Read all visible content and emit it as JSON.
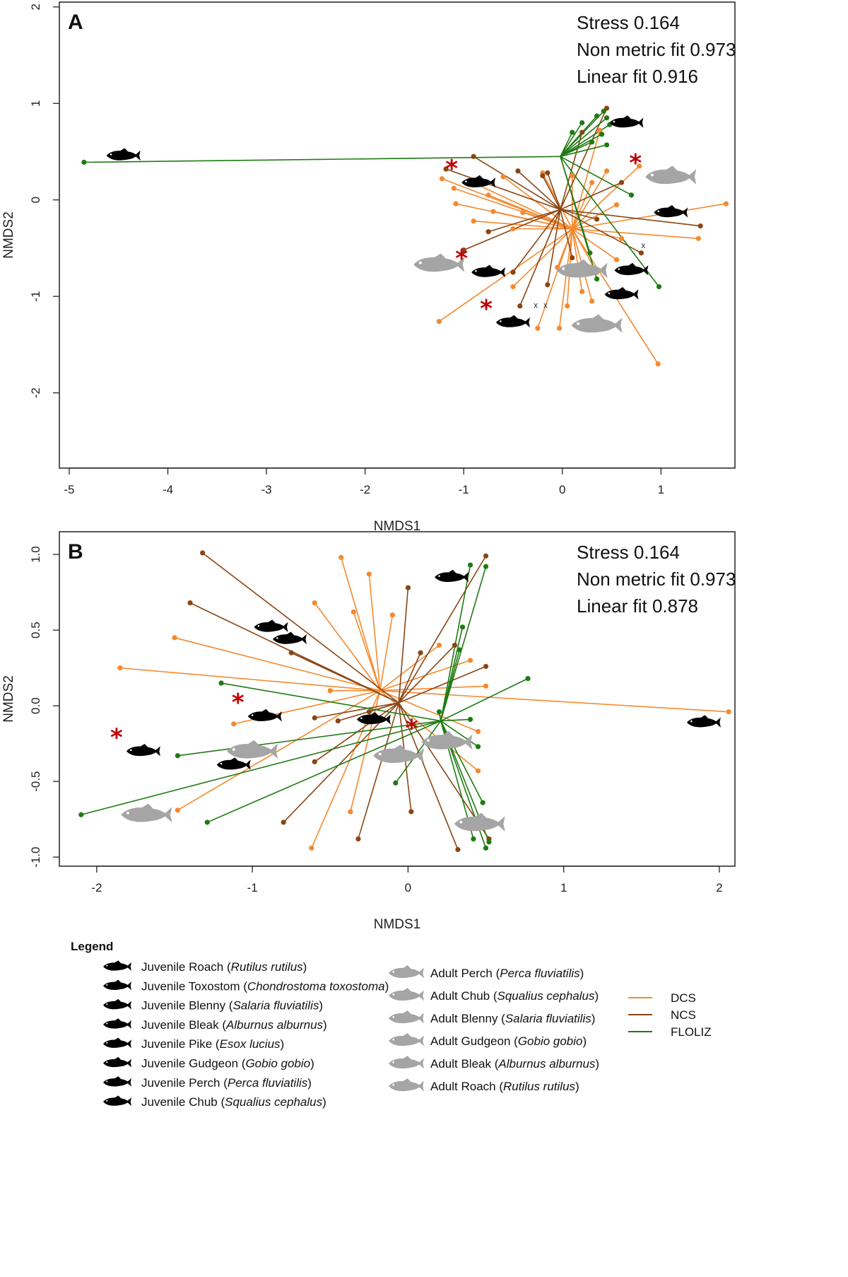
{
  "chart_data": [
    {
      "type": "scatter",
      "panel": "A",
      "xlabel": "NMDS1",
      "ylabel": "NMDS2",
      "xlim": [
        -5.1,
        1.75
      ],
      "ylim": [
        -2.78,
        2.05
      ],
      "xticks": [
        -5,
        -4,
        -3,
        -2,
        -1,
        0,
        1
      ],
      "yticks": [
        -2,
        -1,
        0,
        1,
        2
      ],
      "stats": [
        "Stress 0.164",
        "Non metric fit 0.973",
        "Linear fit 0.916"
      ],
      "centroids": {
        "DCS": [
          0.1,
          -0.3
        ],
        "NCS": [
          -0.02,
          -0.1
        ],
        "FLOLIZ": [
          -0.02,
          0.45
        ]
      },
      "series": [
        {
          "name": "DCS",
          "points": [
            [
              -1.22,
              0.22
            ],
            [
              -1.1,
              0.12
            ],
            [
              -1.08,
              -0.04
            ],
            [
              -0.95,
              0.2
            ],
            [
              -0.9,
              -0.22
            ],
            [
              -0.75,
              0.05
            ],
            [
              -0.7,
              -0.12
            ],
            [
              -0.6,
              0.24
            ],
            [
              -0.5,
              -0.3
            ],
            [
              -0.4,
              -0.13
            ],
            [
              -0.2,
              0.28
            ],
            [
              0.1,
              0.25
            ],
            [
              0.3,
              0.18
            ],
            [
              0.45,
              0.3
            ],
            [
              0.55,
              -0.05
            ],
            [
              1.66,
              -0.04
            ],
            [
              1.38,
              -0.4
            ],
            [
              0.78,
              0.35
            ],
            [
              0.6,
              -0.4
            ],
            [
              0.55,
              -0.62
            ],
            [
              0.35,
              -0.75
            ],
            [
              0.2,
              -0.95
            ],
            [
              0.3,
              -1.05
            ],
            [
              0.05,
              -1.1
            ],
            [
              -0.03,
              -1.33
            ],
            [
              -0.25,
              -1.33
            ],
            [
              -0.5,
              -0.9
            ],
            [
              -1.25,
              -1.26
            ],
            [
              0.38,
              0.72
            ],
            [
              0.97,
              -1.7
            ],
            [
              -0.05,
              -0.7
            ]
          ]
        },
        {
          "name": "NCS",
          "points": [
            [
              -1.18,
              0.32
            ],
            [
              -0.9,
              0.45
            ],
            [
              -0.45,
              0.3
            ],
            [
              -0.2,
              0.25
            ],
            [
              -0.15,
              0.28
            ],
            [
              -1.0,
              -0.52
            ],
            [
              -0.75,
              -0.33
            ],
            [
              -0.5,
              -0.75
            ],
            [
              -0.43,
              -1.1
            ],
            [
              -0.15,
              -0.88
            ],
            [
              0.1,
              -0.6
            ],
            [
              0.35,
              -0.2
            ],
            [
              0.8,
              -0.55
            ],
            [
              1.4,
              -0.27
            ],
            [
              0.45,
              0.95
            ],
            [
              0.6,
              0.18
            ],
            [
              0.2,
              0.7
            ]
          ]
        },
        {
          "name": "FLOLIZ",
          "points": [
            [
              -4.85,
              0.39
            ],
            [
              0.1,
              0.7
            ],
            [
              0.2,
              0.8
            ],
            [
              0.3,
              0.6
            ],
            [
              0.42,
              0.92
            ],
            [
              0.45,
              0.85
            ],
            [
              0.4,
              0.68
            ],
            [
              0.45,
              0.57
            ],
            [
              0.48,
              0.78
            ],
            [
              0.35,
              0.87
            ],
            [
              0.7,
              0.05
            ],
            [
              0.98,
              -0.9
            ],
            [
              0.35,
              -0.82
            ],
            [
              0.28,
              -0.55
            ]
          ]
        }
      ],
      "annotations": [
        {
          "text": "Juvenile Pike (Esox lucius)",
          "pos": [
            -4.45,
            0.46
          ]
        },
        {
          "text": "Juvenile Blenny (Salaria fluviatilis)",
          "pos": [
            0.65,
            0.8
          ]
        },
        {
          "text": "Adult Blenny (Salaria fluviatilis)",
          "pos": [
            1.1,
            0.24
          ],
          "star": true
        },
        {
          "text": "Juvenile Perch (Perca fluviatilis)",
          "pos": [
            -0.85,
            0.18
          ],
          "star": true
        },
        {
          "text": "Juvenile Bleak (Alburnus alburnus)",
          "pos": [
            1.1,
            -0.13
          ]
        },
        {
          "text": "Adult Gudgeon (Gobio gobio)",
          "pos": [
            -1.25,
            -0.67
          ]
        },
        {
          "text": "Juvenile Gudgeon (Gobio gobio)",
          "pos": [
            -0.75,
            -0.75
          ],
          "star": true
        },
        {
          "text": "Adult Perch (Perca fluviatilis)",
          "pos": [
            0.2,
            -0.73
          ]
        },
        {
          "text": "Juvenile Roach (Rutilus rutilus)",
          "pos": [
            0.7,
            -0.73
          ]
        },
        {
          "text": "Juvenile Chub (Squalius cephalus)",
          "pos": [
            0.6,
            -0.98
          ]
        },
        {
          "text": "Juvenile Toxostom (Chondrostoma toxostoma)",
          "pos": [
            -0.5,
            -1.27
          ],
          "star": true
        },
        {
          "text": "Adult Chub (Squalius cephalus)",
          "pos": [
            0.35,
            -1.3
          ]
        }
      ],
      "markers": [
        {
          "text": "x",
          "pos": [
            -0.27,
            -1.09
          ]
        },
        {
          "text": "x",
          "pos": [
            -0.17,
            -1.09
          ]
        },
        {
          "text": "x",
          "pos": [
            0.82,
            -0.47
          ]
        }
      ]
    },
    {
      "type": "scatter",
      "panel": "B",
      "xlabel": "NMDS1",
      "ylabel": "NMDS2",
      "xlim": [
        -2.24,
        2.1
      ],
      "ylim": [
        -1.06,
        1.15
      ],
      "xticks": [
        -2,
        -1,
        0,
        1,
        2
      ],
      "yticks": [
        1.0,
        0.5,
        0.0,
        -0.5,
        -1.0
      ],
      "stats": [
        "Stress 0.164",
        "Non metric fit 0.973",
        "Linear fit 0.878"
      ],
      "centroids": {
        "DCS": [
          -0.18,
          0.1
        ],
        "NCS": [
          -0.06,
          0.02
        ],
        "FLOLIZ": [
          0.21,
          -0.1
        ]
      },
      "series": [
        {
          "name": "DCS",
          "points": [
            [
              -1.85,
              0.25
            ],
            [
              -1.5,
              0.45
            ],
            [
              -0.43,
              0.98
            ],
            [
              -0.6,
              0.68
            ],
            [
              -0.25,
              0.87
            ],
            [
              -0.1,
              0.6
            ],
            [
              -0.35,
              0.62
            ],
            [
              -0.5,
              0.1
            ],
            [
              -1.12,
              -0.12
            ],
            [
              -1.48,
              -0.69
            ],
            [
              -0.62,
              -0.94
            ],
            [
              -0.37,
              -0.7
            ],
            [
              0.4,
              0.3
            ],
            [
              0.45,
              -0.17
            ],
            [
              0.45,
              -0.43
            ],
            [
              0.2,
              0.4
            ],
            [
              0.5,
              0.13
            ],
            [
              2.06,
              -0.04
            ]
          ]
        },
        {
          "name": "NCS",
          "points": [
            [
              -1.32,
              1.01
            ],
            [
              -1.4,
              0.68
            ],
            [
              -0.75,
              0.35
            ],
            [
              -0.6,
              -0.08
            ],
            [
              -0.45,
              -0.1
            ],
            [
              -0.25,
              -0.04
            ],
            [
              -0.6,
              -0.37
            ],
            [
              -0.8,
              -0.77
            ],
            [
              -0.32,
              -0.88
            ],
            [
              0.0,
              0.78
            ],
            [
              0.02,
              -0.7
            ],
            [
              0.32,
              -0.95
            ],
            [
              0.52,
              -0.88
            ],
            [
              0.5,
              0.26
            ],
            [
              0.5,
              0.99
            ],
            [
              0.3,
              0.4
            ],
            [
              0.08,
              0.35
            ]
          ]
        },
        {
          "name": "FLOLIZ",
          "points": [
            [
              -2.1,
              -0.72
            ],
            [
              -1.48,
              -0.33
            ],
            [
              -1.2,
              0.15
            ],
            [
              -1.29,
              -0.77
            ],
            [
              0.4,
              0.93
            ],
            [
              0.5,
              0.92
            ],
            [
              0.35,
              0.52
            ],
            [
              0.33,
              0.37
            ],
            [
              0.77,
              0.18
            ],
            [
              0.2,
              -0.04
            ],
            [
              -0.08,
              -0.51
            ],
            [
              0.4,
              -0.09
            ],
            [
              0.45,
              -0.27
            ],
            [
              0.48,
              -0.64
            ],
            [
              0.52,
              -0.9
            ],
            [
              0.42,
              -0.88
            ],
            [
              0.5,
              -0.94
            ]
          ]
        }
      ],
      "annotations": [
        {
          "text": "Juvenile Pike (Esox lucius)",
          "pos": [
            1.9,
            -0.11
          ]
        },
        {
          "text": "Juvenile Blenny (Salaria fluviatilis)",
          "pos": [
            0.28,
            0.85
          ]
        },
        {
          "text": "Juvenile Bleak (Alburnus alburnus)",
          "pos": [
            -0.88,
            0.52
          ]
        },
        {
          "text": "Juvenile Roach (Rutilus rutilus)",
          "pos": [
            -0.76,
            0.44
          ]
        },
        {
          "text": "Juvenile Gudgeon (Gobio gobio)",
          "pos": [
            -0.92,
            -0.07
          ],
          "star": true
        },
        {
          "text": "Juvenile Perch (Perca fluviatilis)",
          "pos": [
            -0.22,
            -0.09
          ]
        },
        {
          "text": "Juvenile Toxostom (Chondrostoma toxostoma)",
          "pos": [
            -1.7,
            -0.3
          ],
          "star": true
        },
        {
          "text": "Juvenile Chub (Squalius cephalus)",
          "pos": [
            -1.12,
            -0.39
          ]
        },
        {
          "text": "Adult Gudgeon (Gobio gobio)",
          "pos": [
            -1.0,
            -0.3
          ]
        },
        {
          "text": "Adult Perch (Perca fluviatilis)",
          "pos": [
            0.25,
            -0.24
          ],
          "star": true
        },
        {
          "text": "Adult Roach (Rutilus rutilus)",
          "pos": [
            -0.06,
            -0.33
          ]
        },
        {
          "text": "Adult Blenny (Salaria fluviatilis)",
          "pos": [
            0.46,
            -0.78
          ]
        },
        {
          "text": "Adult Chub (Squalius cephalus)",
          "pos": [
            -1.68,
            -0.72
          ]
        }
      ]
    }
  ],
  "legend": {
    "title": "Legend",
    "juvenile": [
      {
        "name": "Juvenile Roach",
        "latin": "Rutilus rutilus"
      },
      {
        "name": "Juvenile Toxostom",
        "latin": "Chondrostoma toxostoma"
      },
      {
        "name": "Juvenile Blenny",
        "latin": "Salaria fluviatilis"
      },
      {
        "name": "Juvenile Bleak",
        "latin": "Alburnus alburnus"
      },
      {
        "name": "Juvenile Pike",
        "latin": "Esox lucius"
      },
      {
        "name": "Juvenile Gudgeon",
        "latin": "Gobio gobio"
      },
      {
        "name": "Juvenile Perch",
        "latin": "Perca fluviatilis"
      },
      {
        "name": "Juvenile Chub",
        "latin": "Squalius cephalus"
      }
    ],
    "adult": [
      {
        "name": "Adult Perch",
        "latin": "Perca fluviatilis"
      },
      {
        "name": "Adult Chub",
        "latin": "Squalius cephalus"
      },
      {
        "name": "Adult Blenny",
        "latin": "Salaria fluviatilis"
      },
      {
        "name": "Adult Gudgeon",
        "latin": "Gobio gobio"
      },
      {
        "name": "Adult Bleak",
        "latin": "Alburnus alburnus"
      },
      {
        "name": "Adult Roach",
        "latin": "Rutilus rutilus"
      }
    ],
    "groups": [
      {
        "label": "DCS",
        "color": "#f4892f"
      },
      {
        "label": "NCS",
        "color": "#8b4513"
      },
      {
        "label": "FLOLIZ",
        "color": "#1e7b12"
      }
    ]
  },
  "colors": {
    "DCS": "#f4892f",
    "NCS": "#8b4513",
    "FLOLIZ": "#1e7b12",
    "juvenile": "#000000",
    "adult": "#a5a5a5",
    "star": "#c00000"
  }
}
